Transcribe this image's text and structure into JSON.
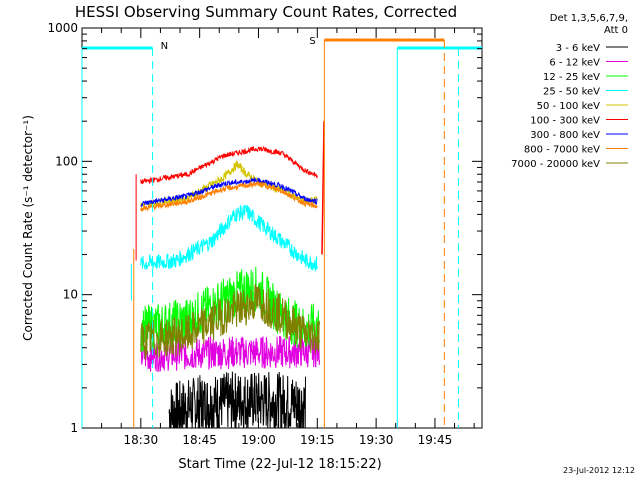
{
  "chart_data": {
    "type": "line",
    "title": "HESSI Observing Summary Count Rates, Corrected",
    "xlabel": "Start Time (22-Jul-12 18:15:22)",
    "ylabel": "Corrected Count Rate (s⁻¹ detector⁻¹)",
    "ylog": true,
    "ylim": [
      1,
      1000
    ],
    "xlim_minutes": [
      18.25,
      19.95
    ],
    "x_ticks": [
      "18:30",
      "18:45",
      "19:00",
      "19:15",
      "19:30",
      "19:45"
    ],
    "y_tick_labels": [
      "1",
      "10",
      "100",
      "1000"
    ],
    "legend_title": [
      "Det 1,3,5,6,7,9,",
      "Att 0"
    ],
    "legend_position": "right",
    "footer_date": "23-Jul-2012 12:12",
    "series": [
      {
        "name": "3 - 6 keV",
        "color": "#000000",
        "points": [
          [
            18.62,
            1.3
          ],
          [
            18.75,
            1.5
          ],
          [
            18.9,
            1.6
          ],
          [
            19.05,
            1.6
          ],
          [
            19.2,
            1.5
          ]
        ]
      },
      {
        "name": "6 - 12 keV",
        "color": "#e000e0",
        "points": [
          [
            18.5,
            3.5
          ],
          [
            18.7,
            3.6
          ],
          [
            18.9,
            3.7
          ],
          [
            19.1,
            3.7
          ],
          [
            19.26,
            3.8
          ]
        ]
      },
      {
        "name": "12 - 25 keV",
        "color": "#00ff00",
        "points": [
          [
            18.5,
            5.5
          ],
          [
            18.7,
            6.5
          ],
          [
            18.85,
            9
          ],
          [
            18.95,
            11
          ],
          [
            19.0,
            11
          ],
          [
            19.1,
            7
          ],
          [
            19.2,
            5.5
          ],
          [
            19.26,
            6
          ]
        ]
      },
      {
        "name": "25 - 50 keV",
        "color": "#00ffff",
        "points": [
          [
            18.5,
            17
          ],
          [
            18.65,
            18
          ],
          [
            18.8,
            25
          ],
          [
            18.9,
            40
          ],
          [
            18.95,
            42
          ],
          [
            19.0,
            35
          ],
          [
            19.1,
            25
          ],
          [
            19.2,
            18
          ],
          [
            19.25,
            17
          ]
        ]
      },
      {
        "name": "50 - 100 keV",
        "color": "#d4c400",
        "points": [
          [
            18.5,
            47
          ],
          [
            18.7,
            53
          ],
          [
            18.85,
            75
          ],
          [
            18.91,
            95
          ],
          [
            18.95,
            80
          ],
          [
            19.0,
            70
          ],
          [
            19.1,
            60
          ],
          [
            19.2,
            50
          ],
          [
            19.25,
            52
          ]
        ]
      },
      {
        "name": "100 - 300 keV",
        "color": "#ff0000",
        "points": [
          [
            18.5,
            70
          ],
          [
            18.7,
            80
          ],
          [
            18.85,
            110
          ],
          [
            19.0,
            125
          ],
          [
            19.1,
            115
          ],
          [
            19.2,
            85
          ],
          [
            19.25,
            78
          ]
        ]
      },
      {
        "name": "300 - 800 keV",
        "color": "#0000ff",
        "points": [
          [
            18.5,
            48
          ],
          [
            18.7,
            55
          ],
          [
            18.85,
            68
          ],
          [
            19.0,
            72
          ],
          [
            19.1,
            65
          ],
          [
            19.2,
            52
          ],
          [
            19.25,
            50
          ]
        ]
      },
      {
        "name": "800 - 7000 keV",
        "color": "#ff8000",
        "points": [
          [
            18.5,
            44
          ],
          [
            18.7,
            50
          ],
          [
            18.85,
            62
          ],
          [
            19.0,
            68
          ],
          [
            19.1,
            60
          ],
          [
            19.2,
            48
          ],
          [
            19.25,
            46
          ]
        ]
      },
      {
        "name": "7000 - 20000 keV",
        "color": "#808000",
        "points": [
          [
            18.5,
            4.5
          ],
          [
            18.7,
            5
          ],
          [
            18.85,
            7
          ],
          [
            19.0,
            9
          ],
          [
            19.1,
            7
          ],
          [
            19.2,
            5
          ],
          [
            19.26,
            5
          ]
        ]
      }
    ],
    "annotations": [
      {
        "label": "N",
        "color": "#00ffff"
      },
      {
        "label": "S",
        "color": "#ff8000"
      }
    ]
  }
}
